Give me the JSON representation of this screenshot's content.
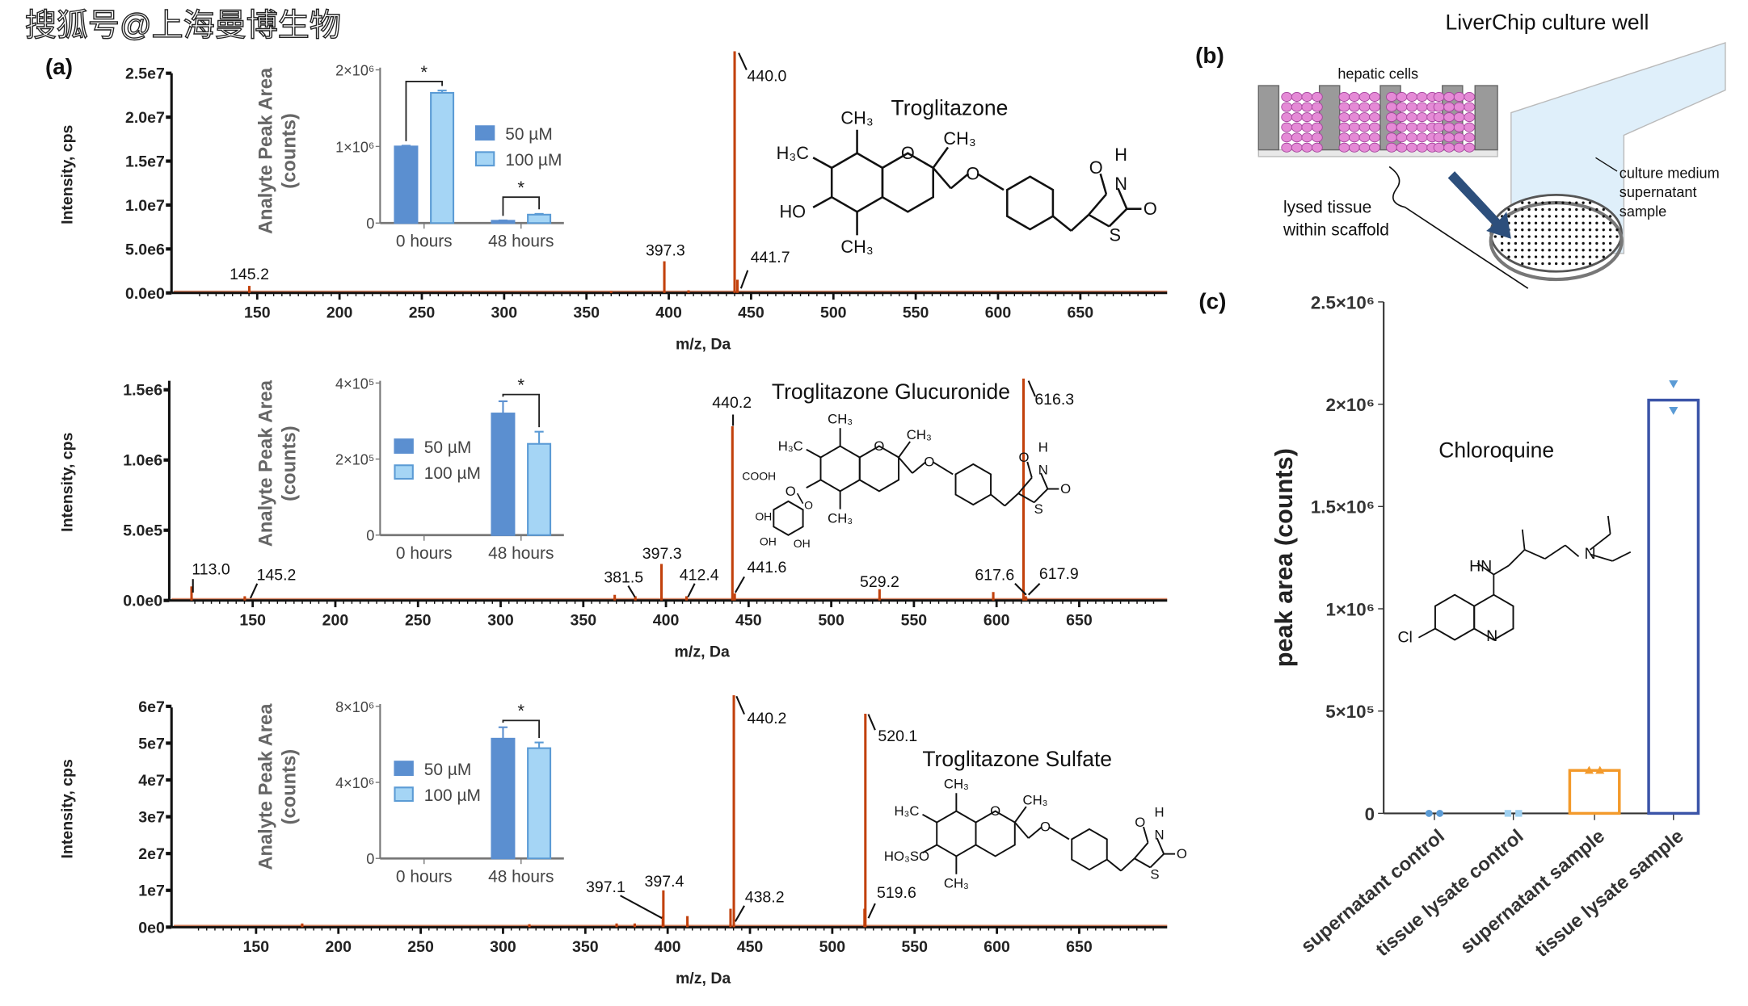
{
  "watermark": "搜狐号@上海曼博生物",
  "panel_labels": {
    "a": "(a)",
    "b": "(b)",
    "c": "(c)"
  },
  "colors": {
    "peak": "#c2410c",
    "conc_50uM": "#5b8fd0",
    "conc_100uM": "#a5d5f5",
    "conc_100uM_edge": "#5b9bd5",
    "supernatant_sample": "#f39a2b",
    "tissue_lysate_sample": "#3b54a8",
    "supernatant_control_points": "#5b9bd5",
    "tissue_lysate_control_points": "#9fd0f0",
    "diagram_arrow": "#2d4f7c",
    "cells": "#e58ad6",
    "scaffold": "#9a9a9a"
  },
  "chart_data": [
    {
      "id": "spectrum-troglitazone",
      "type": "bar",
      "subtype": "mass-spectrum",
      "title": "Troglitazone",
      "xlabel": "m/z, Da",
      "ylabel": "Intensity, cps",
      "xlim": [
        112,
        700
      ],
      "ylim": [
        0,
        25000000.0
      ],
      "xticks": [
        "150",
        "200",
        "250",
        "300",
        "350",
        "400",
        "450",
        "500",
        "550",
        "600",
        "650"
      ],
      "yticks": [
        {
          "v": 0,
          "t": "0.0e0"
        },
        {
          "v": 5000000.0,
          "t": "5.0e6"
        },
        {
          "v": 10000000.0,
          "t": "1.0e7"
        },
        {
          "v": 15000000.0,
          "t": "1.5e7"
        },
        {
          "v": 20000000.0,
          "t": "2.0e7"
        },
        {
          "v": 25000000.0,
          "t": "2.5e7"
        }
      ],
      "peaks": [
        {
          "mz": 145.2,
          "y": 800000.0,
          "label": "145.2"
        },
        {
          "mz": 365,
          "y": 200000.0
        },
        {
          "mz": 397.3,
          "y": 3600000.0,
          "label": "397.3"
        },
        {
          "mz": 412,
          "y": 300000.0
        },
        {
          "mz": 440.0,
          "y": 27500000.0,
          "label": "440.0"
        },
        {
          "mz": 441.7,
          "y": 1500000.0,
          "label": "441.7"
        }
      ]
    },
    {
      "id": "inset-troglitazone",
      "type": "bar",
      "ylabel": [
        "Analyte Peak Area",
        "(counts)"
      ],
      "ylim": [
        0,
        2000000.0
      ],
      "yticks": [
        {
          "v": 0,
          "t": "0"
        },
        {
          "v": 1000000.0,
          "t": "1×10⁶"
        },
        {
          "v": 2000000.0,
          "t": "2×10⁶"
        }
      ],
      "categories": [
        "0 hours",
        "48 hours"
      ],
      "series": [
        {
          "name": "50 µM",
          "values": [
            1000000.0,
            30000.0
          ],
          "errors": [
            10000.0,
            5000.0
          ]
        },
        {
          "name": "100 µM",
          "values": [
            1700000.0,
            110000.0
          ],
          "errors": [
            30000.0,
            10000.0
          ]
        }
      ],
      "significance": [
        {
          "group": "0 hours",
          "label": "*"
        },
        {
          "group": "48 hours",
          "label": "*"
        }
      ]
    },
    {
      "id": "spectrum-glucuronide",
      "type": "bar",
      "subtype": "mass-spectrum",
      "title": "Troglitazone Glucuronide",
      "xlabel": "m/z, Da",
      "ylabel": "Intensity, cps",
      "xlim": [
        112,
        700
      ],
      "ylim": [
        0,
        1500000.0
      ],
      "xticks": [
        "150",
        "200",
        "250",
        "300",
        "350",
        "400",
        "450",
        "500",
        "550",
        "600",
        "650"
      ],
      "yticks": [
        {
          "v": 0,
          "t": "0.0e0"
        },
        {
          "v": 500000.0,
          "t": "5.0e5"
        },
        {
          "v": 1000000.0,
          "t": "1.0e6"
        },
        {
          "v": 1500000.0,
          "t": "1.5e6"
        }
      ],
      "peaks": [
        {
          "mz": 113.0,
          "y": 100000.0,
          "label": "113.0"
        },
        {
          "mz": 145.2,
          "y": 30000.0,
          "label": "145.2"
        },
        {
          "mz": 369,
          "y": 40000.0
        },
        {
          "mz": 381.5,
          "y": 30000.0,
          "label": "381.5"
        },
        {
          "mz": 397.3,
          "y": 260000.0,
          "label": "397.3"
        },
        {
          "mz": 412.4,
          "y": 30000.0,
          "label": "412.4"
        },
        {
          "mz": 440.2,
          "y": 1240000.0,
          "label": "440.2"
        },
        {
          "mz": 441.6,
          "y": 50000.0,
          "label": "441.6"
        },
        {
          "mz": 529.2,
          "y": 80000.0,
          "label": "529.2"
        },
        {
          "mz": 598,
          "y": 60000.0
        },
        {
          "mz": 616.3,
          "y": 1580000.0,
          "label": "616.3"
        },
        {
          "mz": 617.6,
          "y": 30000.0,
          "label": "617.6"
        },
        {
          "mz": 617.9,
          "y": 20000.0,
          "label": "617.9"
        }
      ]
    },
    {
      "id": "inset-glucuronide",
      "type": "bar",
      "ylabel": [
        "Analyte Peak Area",
        "(counts)"
      ],
      "ylim": [
        0,
        400000.0
      ],
      "yticks": [
        {
          "v": 0,
          "t": "0"
        },
        {
          "v": 200000.0,
          "t": "2×10⁵"
        },
        {
          "v": 400000.0,
          "t": "4×10⁵"
        }
      ],
      "categories": [
        "0 hours",
        "48 hours"
      ],
      "series": [
        {
          "name": "50 µM",
          "values": [
            0,
            320000.0
          ],
          "errors": [
            0,
            32000.0
          ]
        },
        {
          "name": "100 µM",
          "values": [
            0,
            240000.0
          ],
          "errors": [
            0,
            32000.0
          ]
        }
      ],
      "significance": [
        {
          "group": "48 hours",
          "label": "*"
        }
      ]
    },
    {
      "id": "spectrum-sulfate",
      "type": "bar",
      "subtype": "mass-spectrum",
      "title": "Troglitazone Sulfate",
      "xlabel": "m/z, Da",
      "ylabel": "Intensity, cps",
      "xlim": [
        112,
        700
      ],
      "ylim": [
        0,
        60000000.0
      ],
      "xticks": [
        "150",
        "200",
        "250",
        "300",
        "350",
        "400",
        "450",
        "500",
        "550",
        "600",
        "650"
      ],
      "yticks": [
        {
          "v": 0,
          "t": "0e0"
        },
        {
          "v": 10000000.0,
          "t": "1e7"
        },
        {
          "v": 20000000.0,
          "t": "2e7"
        },
        {
          "v": 30000000.0,
          "t": "3e7"
        },
        {
          "v": 40000000.0,
          "t": "4e7"
        },
        {
          "v": 50000000.0,
          "t": "5e7"
        },
        {
          "v": 60000000.0,
          "t": "6e7"
        }
      ],
      "peaks": [
        {
          "mz": 178,
          "y": 1000000.0
        },
        {
          "mz": 316,
          "y": 800000.0
        },
        {
          "mz": 369,
          "y": 1000000.0
        },
        {
          "mz": 380,
          "y": 1000000.0
        },
        {
          "mz": 397.1,
          "y": 3000000.0,
          "label": "397.1"
        },
        {
          "mz": 397.4,
          "y": 10000000.0,
          "label": "397.4"
        },
        {
          "mz": 412,
          "y": 3000000.0
        },
        {
          "mz": 438.2,
          "y": 5000000.0,
          "label": "438.2"
        },
        {
          "mz": 440.2,
          "y": 63000000.0,
          "label": "440.2"
        },
        {
          "mz": 519.6,
          "y": 5000000.0,
          "label": "519.6"
        },
        {
          "mz": 520.1,
          "y": 58000000.0,
          "label": "520.1"
        }
      ]
    },
    {
      "id": "inset-sulfate",
      "type": "bar",
      "ylabel": [
        "Analyte Peak Area",
        "(counts)"
      ],
      "ylim": [
        0,
        8000000.0
      ],
      "yticks": [
        {
          "v": 0,
          "t": "0"
        },
        {
          "v": 4000000.0,
          "t": "4×10⁶"
        },
        {
          "v": 8000000.0,
          "t": "8×10⁶"
        }
      ],
      "categories": [
        "0 hours",
        "48 hours"
      ],
      "series": [
        {
          "name": "50 µM",
          "values": [
            0,
            6300000.0
          ],
          "errors": [
            0,
            600000.0
          ]
        },
        {
          "name": "100 µM",
          "values": [
            0,
            5800000.0
          ],
          "errors": [
            0,
            300000.0
          ]
        }
      ],
      "significance": [
        {
          "group": "48 hours",
          "label": "*"
        }
      ]
    },
    {
      "id": "chloroquine-peak-area",
      "type": "bar",
      "title": "Chloroquine",
      "ylabel": "peak area (counts)",
      "ylim": [
        0,
        2500000.0
      ],
      "yticks": [
        {
          "v": 0,
          "t": "0"
        },
        {
          "v": 500000.0,
          "t": "5×10⁵"
        },
        {
          "v": 1000000.0,
          "t": "1×10⁶"
        },
        {
          "v": 1500000.0,
          "t": "1.5×10⁶"
        },
        {
          "v": 2000000.0,
          "t": "2×10⁶"
        },
        {
          "v": 2500000.0,
          "t": "2.5×10⁶"
        }
      ],
      "categories": [
        "supernatant control",
        "tissue lysate control",
        "supernatant sample",
        "tissue lysate sample"
      ],
      "values": [
        0,
        0,
        210000.0,
        2020000.0
      ],
      "points": [
        [
          0,
          0
        ],
        [
          0,
          0
        ],
        [
          210000.0,
          210000.0
        ],
        [
          2100000.0,
          1970000.0
        ]
      ],
      "markers": [
        "circle",
        "square",
        "triangle-up",
        "triangle-down"
      ]
    }
  ],
  "structures": {
    "troglitazone": [
      "CH₃",
      "H₃C",
      "HO",
      "CH₃",
      "O",
      "CH₃",
      "O",
      "O",
      "H",
      "N",
      "O",
      "S"
    ],
    "glucuronide": [
      "CH₃",
      "H₃C",
      "O",
      "CH₃",
      "O",
      "CH₃",
      "O",
      "O",
      "H",
      "N",
      "O",
      "S",
      "COOH",
      "O",
      "OH",
      "OH",
      "OH"
    ],
    "sulfate": [
      "CH₃",
      "H₃C",
      "HO₃SO",
      "CH₃",
      "O",
      "CH₃",
      "O",
      "O",
      "H",
      "N",
      "O",
      "S"
    ],
    "chloroquine": [
      "HN",
      "N",
      "Cl",
      "N"
    ]
  },
  "diagram": {
    "title": "LiverChip culture well",
    "hepatic_cells": "hepatic cells",
    "lysed_tissue": [
      "lysed tissue",
      "within scaffold"
    ],
    "supernatant": [
      "culture medium",
      "supernatant",
      "sample"
    ]
  }
}
